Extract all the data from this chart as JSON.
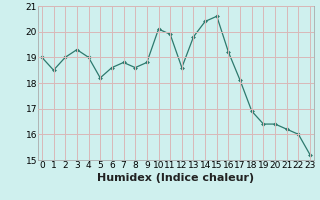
{
  "x": [
    0,
    1,
    2,
    3,
    4,
    5,
    6,
    7,
    8,
    9,
    10,
    11,
    12,
    13,
    14,
    15,
    16,
    17,
    18,
    19,
    20,
    21,
    22,
    23
  ],
  "y": [
    19.0,
    18.5,
    19.0,
    19.3,
    19.0,
    18.2,
    18.6,
    18.8,
    18.6,
    18.8,
    20.1,
    19.9,
    18.6,
    19.8,
    20.4,
    20.6,
    19.2,
    18.1,
    16.9,
    16.4,
    16.4,
    16.2,
    16.0,
    15.2
  ],
  "bg_color": "#cff0ee",
  "grid_color": "#d9b8b8",
  "line_color": "#2d7a6e",
  "marker_color": "#2d7a6e",
  "xlabel": "Humidex (Indice chaleur)",
  "ylim": [
    15,
    21
  ],
  "xlim": [
    -0.3,
    23.3
  ],
  "yticks": [
    15,
    16,
    17,
    18,
    19,
    20,
    21
  ],
  "xticks": [
    0,
    1,
    2,
    3,
    4,
    5,
    6,
    7,
    8,
    9,
    10,
    11,
    12,
    13,
    14,
    15,
    16,
    17,
    18,
    19,
    20,
    21,
    22,
    23
  ],
  "xlabel_fontsize": 8,
  "tick_fontsize": 6.5
}
